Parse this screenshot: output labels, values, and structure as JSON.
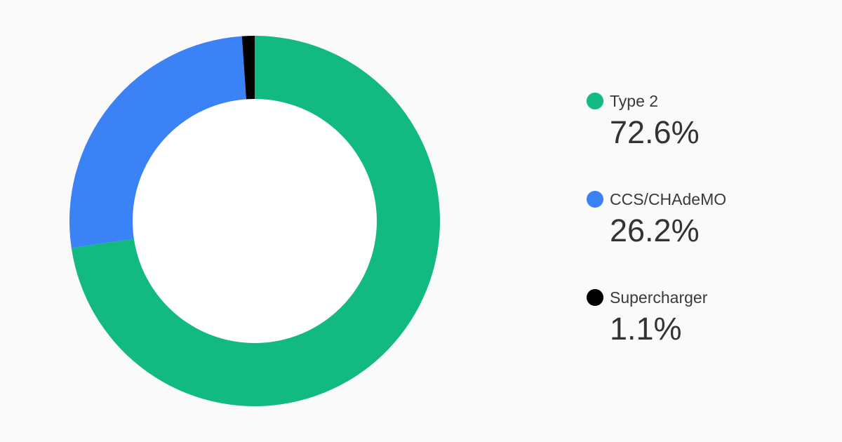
{
  "chart_data": {
    "type": "pie",
    "donut": true,
    "start_angle_deg": 0,
    "direction": "clockwise",
    "legend_position": "right",
    "slices": [
      {
        "label": "Type 2",
        "value": 72.6,
        "display": "72.6%",
        "color": "#12b981"
      },
      {
        "label": "CCS/CHAdeMO",
        "value": 26.2,
        "display": "26.2%",
        "color": "#3b82f6"
      },
      {
        "label": "Supercharger",
        "value": 1.1,
        "display": "1.1%",
        "color": "#000000"
      }
    ]
  },
  "colors": {
    "background": "#fafafa",
    "donut_hole": "#ffffff"
  }
}
